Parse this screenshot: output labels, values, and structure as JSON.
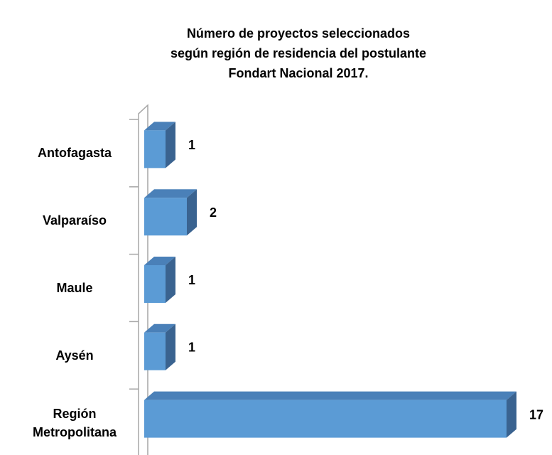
{
  "chart_data": {
    "type": "bar3d_horizontal",
    "title": [
      "Número de proyectos seleccionados",
      "según región de residencia del postulante",
      "Fondart Nacional 2017."
    ],
    "categories": [
      "Antofagasta",
      "Valparaíso",
      "Maule",
      "Aysén",
      "Región Metropolitana"
    ],
    "values": [
      1,
      2,
      1,
      1,
      17
    ],
    "color": "#5b9bd5",
    "xlim": [
      0,
      18
    ]
  }
}
